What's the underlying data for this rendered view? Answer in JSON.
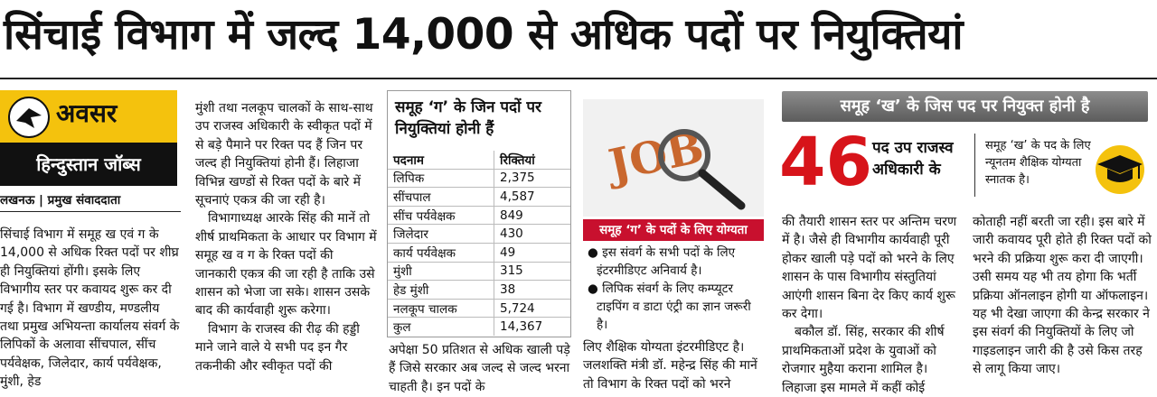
{
  "headline": "सिंचाई विभाग में जल्द 14,000 से अधिक पदों पर नियुक्तियां",
  "logo": {
    "top": "अवसर",
    "bottom": "हिन्दुस्तान जॉब्स"
  },
  "byline": "लखनऊ | प्रमुख संवाददाता",
  "columns": [
    [
      "सिंचाई विभाग में समूह ख एवं ग के 14,000 से अधिक रिक्त पदों पर शीघ्र ही नियुक्तियां होंगी। इसके लिए विभागीय स्तर पर कवायद शुरू कर दी गई है। विभाग में खण्डीय, मण्डलीय तथा प्रमुख अभियन्ता कार्यालय संवर्ग के लिपिकों के अलावा सींचपाल, सींच पर्यवेक्षक, जिलेदार, कार्य पर्यवेक्षक, मुंशी, हेड"
    ],
    [
      "मुंशी तथा नलकूप चालकों के साथ-साथ उप राजस्व अधिकारी के स्वीकृत पदों में से बड़े पैमाने पर रिक्त पद हैं जिन पर जल्द ही नियुक्तियां होनी हैं। लिहाजा विभिन्न खण्डों से रिक्त पदों के बारे में सूचनाएं एकत्र की जा रही है।",
      "विभागाध्यक्ष आरके सिंह की मानें तो शीर्ष प्राथमिकता के आधार पर विभाग में समूह ख व ग के रिक्त पदों की जानकारी एकत्र की जा रही है ताकि उसे शासन को भेजा जा सके। शासन उसके बाद की कार्यवाही शुरू करेगा।",
      "विभाग के राजस्व की रीढ़ की हड्डी माने जाने वाले ये सभी पद इन गैर तकनीकी और स्वीकृत पदों की"
    ],
    [
      "अपेक्षा 50 प्रतिशत से अधिक खाली पड़े हैं जिसे सरकार अब जल्द से जल्द भरना चाहती है। इन पदों के"
    ],
    [
      "लिए शैक्षिक योग्यता इंटरमीडिएट है। जलशक्ति मंत्री डॉ. महेन्द्र सिंह की मानें तो विभाग के रिक्त पदों को भरने"
    ],
    [
      "की तैयारी शासन स्तर पर अन्तिम चरण में है। जैसे ही विभागीय कार्यवाही पूरी होकर खाली पड़े पदों को भरने के लिए शासन के पास विभागीय संस्तुतियां आएंगी शासन बिना देर किए कार्य शुरू कर देगा।",
      "बकौल डॉ. सिंह, सरकार की शीर्ष प्राथमिकताओं प्रदेश के युवाओं को रोजगार मुहैया कराना शामिल है। लिहाजा इस मामले में कहीं कोई"
    ],
    [
      "कोताही नहीं बरती जा रही। इस बारे में जारी कवायद पूरी होते ही रिक्त पदों को भरने की प्रक्रिया शुरू करा दी जाएगी। उसी समय यह भी तय होगा कि भर्ती प्रक्रिया ऑनलाइन होगी या ऑफलाइन। यह भी देखा जाएगा की केन्द्र सरकार ने इस संवर्ग की नियुक्तियों के लिए जो गाइडलाइन जारी की है उसे किस तरह से लागू किया जाए।"
    ]
  ],
  "table": {
    "title": "समूह ‘ग’ के जिन पदों पर नियुक्तियां होनी हैं",
    "header": [
      "पदनाम",
      "रिक्तियां"
    ],
    "rows": [
      [
        "लिपिक",
        "2,375"
      ],
      [
        "सींचपाल",
        "4,587"
      ],
      [
        "सींच पर्यवेक्षक",
        "849"
      ],
      [
        "जिलेदार",
        "430"
      ],
      [
        "कार्य पर्यवेक्षक",
        "49"
      ],
      [
        "मुंशी",
        "315"
      ],
      [
        "हेड मुंशी",
        "38"
      ],
      [
        "नलकूप चालक",
        "5,724"
      ],
      [
        "कुल",
        "14,367"
      ]
    ]
  },
  "image_text": "JOB",
  "group_g": {
    "caption": "समूह ‘ग’ के पदों के लिए योग्यता",
    "bullets": [
      "● इस संवर्ग के सभी पदों के लिए इंटरमीडिएट अनिवार्य है।",
      "● लिपिक संवर्ग के लिए कम्प्यूटर टाइपिंग व डाटा एंट्री का ज्ञान जरूरी है।"
    ]
  },
  "group_kh": {
    "banner": "समूह ‘ख’ के जिस पद पर नियुक्त होनी है",
    "count": 46,
    "post": "पद उप राजस्व अधिकारी के",
    "qualification": "समूह ‘ख’ के पद के लिए न्यूनतम शैक्षिक योग्यता स्नातक है।"
  }
}
